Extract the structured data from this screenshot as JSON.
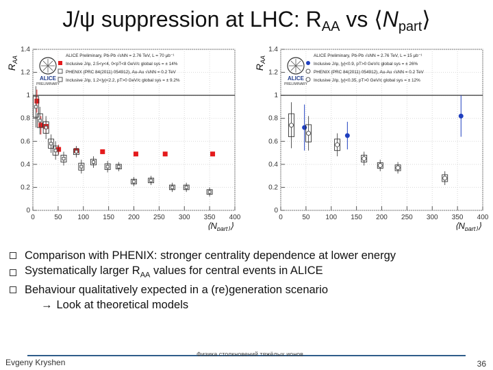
{
  "title": {
    "main": "J/ψ suppression at LHC: R",
    "sub1": "AA",
    "mid": " vs ⟨",
    "n": "N",
    "sub2": "part",
    "end": "⟩"
  },
  "chart_data": [
    {
      "type": "scatter",
      "y_axis_label": "R_AA",
      "x_axis_label": "⟨N_part⟩",
      "xlim": [
        0,
        400
      ],
      "ylim": [
        0,
        1.4
      ],
      "xticks": [
        "0",
        "50",
        "100",
        "150",
        "200",
        "250",
        "300",
        "350",
        "400"
      ],
      "yticks": [
        "0",
        "0.2",
        "0.4",
        "0.6",
        "0.8",
        "1",
        "1.2",
        "1.4"
      ],
      "legend": {
        "header": "ALICE Preliminary, Pb-Pb  √sNN = 2.76 TeV, L = 70 μb⁻¹",
        "entries": [
          {
            "marker": "filled-square",
            "color": "#e41a1c",
            "text": "Inclusive J/ψ, 2.5<y<4, 0<pT<8 GeV/c     global sys = ± 14%"
          },
          {
            "marker": "open-square",
            "color": "#555555",
            "text": "PHENIX (PRC 84(2011) 054912), Au-Au  √sNN = 0.2 TeV"
          },
          {
            "marker": "open-square",
            "color": "#555555",
            "text": "Inclusive J/ψ, 1.2<|y|<2.2, pT>0 GeV/c   global sys = ± 9.2%"
          }
        ]
      },
      "series": [
        {
          "name": "ALICE 2.5<y<4",
          "color": "#e41a1c",
          "marker": "filled-square",
          "points": [
            {
              "x": 8,
              "y": 0.95,
              "err": 0.1
            },
            {
              "x": 16,
              "y": 0.74,
              "err": 0.08
            },
            {
              "x": 26,
              "y": 0.73,
              "err": 0.06
            },
            {
              "x": 51,
              "y": 0.53,
              "err": 0.04
            },
            {
              "x": 86,
              "y": 0.52,
              "err": 0.03
            },
            {
              "x": 138,
              "y": 0.51,
              "err": 0.02
            },
            {
              "x": 204,
              "y": 0.49,
              "err": 0.02
            },
            {
              "x": 262,
              "y": 0.49,
              "err": 0.02
            },
            {
              "x": 356,
              "y": 0.49,
              "err": 0.02
            }
          ]
        },
        {
          "name": "PHENIX 1.2<|y|<2.2",
          "color": "#555555",
          "marker": "open-square",
          "points": [
            {
              "x": 6,
              "y": 0.9,
              "err": 0.18
            },
            {
              "x": 14,
              "y": 0.78,
              "err": 0.12
            },
            {
              "x": 26,
              "y": 0.72,
              "err": 0.1
            },
            {
              "x": 36,
              "y": 0.58,
              "err": 0.08
            },
            {
              "x": 45,
              "y": 0.52,
              "err": 0.08
            },
            {
              "x": 61,
              "y": 0.45,
              "err": 0.06
            },
            {
              "x": 86,
              "y": 0.51,
              "err": 0.05
            },
            {
              "x": 96,
              "y": 0.38,
              "err": 0.06
            },
            {
              "x": 120,
              "y": 0.42,
              "err": 0.05
            },
            {
              "x": 148,
              "y": 0.38,
              "err": 0.05
            },
            {
              "x": 170,
              "y": 0.38,
              "err": 0.04
            },
            {
              "x": 200,
              "y": 0.25,
              "err": 0.04
            },
            {
              "x": 234,
              "y": 0.26,
              "err": 0.04
            },
            {
              "x": 276,
              "y": 0.2,
              "err": 0.04
            },
            {
              "x": 304,
              "y": 0.2,
              "err": 0.04
            },
            {
              "x": 350,
              "y": 0.16,
              "err": 0.04
            }
          ]
        }
      ]
    },
    {
      "type": "scatter",
      "y_axis_label": "R_AA",
      "x_axis_label": "⟨N_part⟩",
      "xlim": [
        0,
        400
      ],
      "ylim": [
        0,
        1.4
      ],
      "xticks": [
        "0",
        "50",
        "100",
        "150",
        "200",
        "250",
        "300",
        "350",
        "400"
      ],
      "yticks": [
        "0",
        "0.2",
        "0.4",
        "0.6",
        "0.8",
        "1",
        "1.2",
        "1.4"
      ],
      "legend": {
        "header": "ALICE Preliminary, Pb-Pb  √sNN = 2.76 TeV, L = 15 μb⁻¹",
        "entries": [
          {
            "marker": "filled-circle",
            "color": "#1f3fbf",
            "text": "Inclusive J/ψ, |y|<0.9, pT>0 GeV/c     global sys = ± 26%"
          },
          {
            "marker": "open-circle",
            "color": "#555555",
            "text": "PHENIX (PRC 84(2011) 054912), Au-Au  √sNN = 0.2 TeV"
          },
          {
            "marker": "open-circle",
            "color": "#555555",
            "text": "Inclusive J/ψ, |y|<0.35, pT>0 GeV/c   global sys = ± 12%"
          }
        ]
      },
      "series": [
        {
          "name": "ALICE |y|<0.9",
          "color": "#1f3fbf",
          "marker": "filled-circle",
          "points": [
            {
              "x": 47,
              "y": 0.72,
              "err": 0.2
            },
            {
              "x": 132,
              "y": 0.65,
              "err": 0.12
            },
            {
              "x": 357,
              "y": 0.82,
              "err": 0.18
            }
          ]
        },
        {
          "name": "PHENIX |y|<0.35",
          "color": "#555555",
          "marker": "open-circle",
          "points": [
            {
              "x": 21,
              "y": 0.74,
              "err": 0.2
            },
            {
              "x": 55,
              "y": 0.67,
              "err": 0.15
            },
            {
              "x": 112,
              "y": 0.57,
              "err": 0.1
            },
            {
              "x": 165,
              "y": 0.45,
              "err": 0.06
            },
            {
              "x": 197,
              "y": 0.39,
              "err": 0.05
            },
            {
              "x": 232,
              "y": 0.37,
              "err": 0.05
            },
            {
              "x": 325,
              "y": 0.28,
              "err": 0.06
            }
          ]
        }
      ]
    }
  ],
  "bullets": [
    {
      "text": "Comparison with PHENIX: stronger centrality dependence at lower energy"
    },
    {
      "pre": "Systematically larger R",
      "sub": "AA",
      "post": " values for central events in ALICE"
    },
    {
      "text": "Behaviour qualitatively expected in a (re)generation scenario"
    }
  ],
  "sub_bullet": {
    "arrow": "→",
    "text": "Look at theoretical models"
  },
  "footer": {
    "author": "Evgeny Kryshen",
    "event": "Физика столкновений тяжёлых ионов",
    "page": "36"
  },
  "logos": [
    {
      "name": "ALICE",
      "caption": "PRELIMINARY"
    },
    {
      "name": "ALICE",
      "caption": "PRELIMINARY"
    }
  ]
}
